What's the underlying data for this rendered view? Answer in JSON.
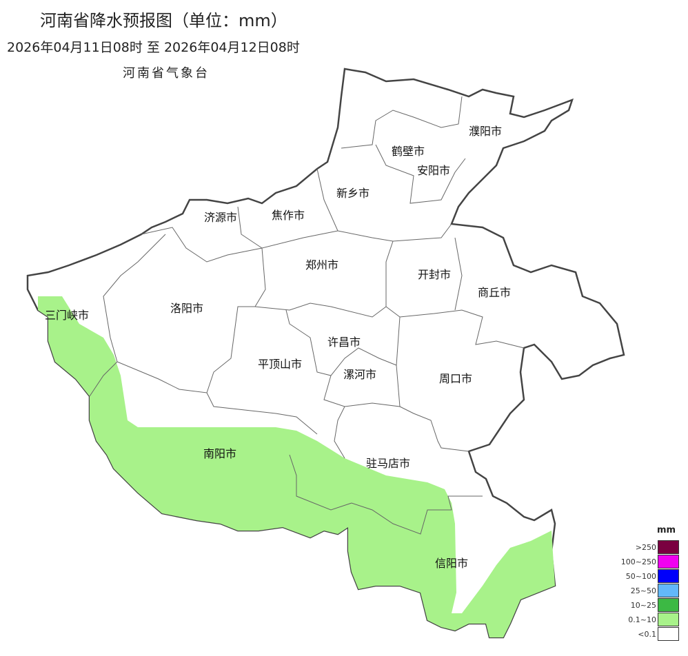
{
  "title": "河南省降水预报图（单位：mm）",
  "period": "2026年04月11日08时  至  2026年04月12日08时",
  "agency": "河南省气象台",
  "cities": [
    "濮阳市",
    "鹤壁市",
    "安阳市",
    "新乡市",
    "济源市",
    "焦作市",
    "郑州市",
    "开封市",
    "商丘市",
    "三门峡市",
    "洛阳市",
    "许昌市",
    "平顶山市",
    "漯河市",
    "周口市",
    "南阳市",
    "驻马店市",
    "信阳市"
  ],
  "forecast_areas": {
    "0.1~10": [
      "三门峡市 (西部)",
      "洛阳市 (西南部)",
      "南阳市",
      "驻马店市 (南部)",
      "信阳市"
    ],
    "<0.1": [
      "其余地区"
    ]
  },
  "legend": {
    "unit": "mm",
    "items": [
      {
        "label": ">250",
        "color": "#7a0040"
      },
      {
        "label": "100~250",
        "color": "#f000f0"
      },
      {
        "label": "50~100",
        "color": "#0000fa"
      },
      {
        "label": "25~50",
        "color": "#62b8fa"
      },
      {
        "label": "10~25",
        "color": "#3cb944"
      },
      {
        "label": "0.1~10",
        "color": "#a8f28a"
      },
      {
        "label": "<0.1",
        "color": "#ffffff"
      }
    ]
  }
}
